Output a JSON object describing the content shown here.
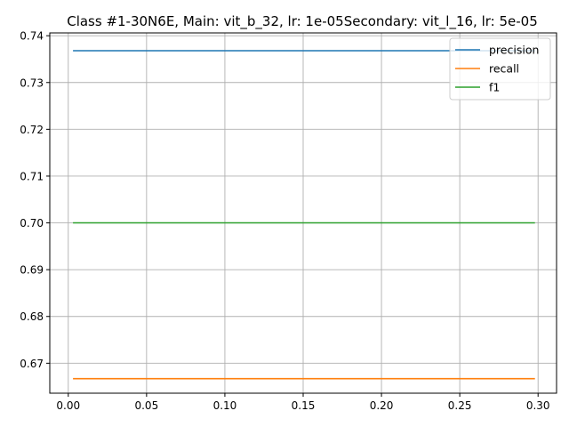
{
  "chart_data": {
    "type": "line",
    "title": "Class #1-30N6E, Main: vit_b_32, lr: 1e-05Secondary: vit_l_16, lr: 5e-05",
    "xlabel": "",
    "ylabel": "",
    "xlim": [
      -0.0118,
      0.3118
    ],
    "ylim": [
      0.6636,
      0.7406
    ],
    "grid": true,
    "legend_position": "upper-right",
    "x_ticks": [
      0.0,
      0.05,
      0.1,
      0.15,
      0.2,
      0.25,
      0.3
    ],
    "x_tick_labels": [
      "0.00",
      "0.05",
      "0.10",
      "0.15",
      "0.20",
      "0.25",
      "0.30"
    ],
    "y_ticks": [
      0.67,
      0.68,
      0.69,
      0.7,
      0.71,
      0.72,
      0.73,
      0.74
    ],
    "y_tick_labels": [
      "0.67",
      "0.68",
      "0.69",
      "0.70",
      "0.71",
      "0.72",
      "0.73",
      "0.74"
    ],
    "x": [
      0.003,
      0.298
    ],
    "series": [
      {
        "name": "precision",
        "color": "#1f77b4",
        "values": [
          0.7368,
          0.7368
        ]
      },
      {
        "name": "recall",
        "color": "#ff7f0e",
        "values": [
          0.6667,
          0.6667
        ]
      },
      {
        "name": "f1",
        "color": "#2ca02c",
        "values": [
          0.7,
          0.7
        ]
      }
    ]
  }
}
